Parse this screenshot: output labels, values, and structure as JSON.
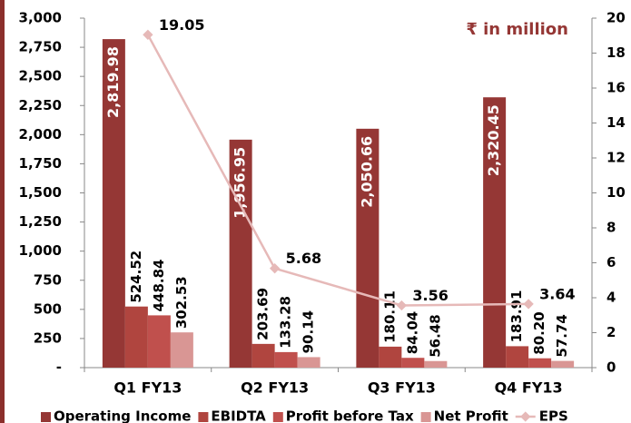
{
  "chart_data": {
    "type": "bar",
    "annotation": "₹ in million",
    "categories": [
      "Q1 FY13",
      "Q2 FY13",
      "Q3 FY13",
      "Q4 FY13"
    ],
    "series": [
      {
        "name": "Operating Income",
        "color": "#953735",
        "values": [
          2819.98,
          1956.95,
          2050.66,
          2320.45
        ],
        "value_labels": [
          "2,819.98",
          "1,956.95",
          "2,050.66",
          "2,320.45"
        ]
      },
      {
        "name": "EBIDTA",
        "color": "#b0453f",
        "values": [
          524.52,
          203.69,
          180.11,
          183.91
        ]
      },
      {
        "name": "Profit before Tax",
        "color": "#c0504d",
        "values": [
          448.84,
          133.28,
          84.04,
          80.2
        ],
        "value_labels": [
          "448.84",
          "133.28",
          "84.04",
          "80.20"
        ]
      },
      {
        "name": "Net Profit",
        "color": "#d99694",
        "values": [
          302.53,
          90.14,
          56.48,
          57.74
        ]
      },
      {
        "name": "EPS",
        "color": "#e6b9b8",
        "axis": "y2",
        "values": [
          19.05,
          5.68,
          3.56,
          3.64
        ]
      }
    ],
    "ylim": [
      0,
      3000
    ],
    "yticks": [
      {
        "value": 0,
        "label": "-"
      },
      250,
      500,
      750,
      {
        "value": 1000,
        "label": "1,000"
      },
      {
        "value": 1250,
        "label": "1,250"
      },
      {
        "value": 1500,
        "label": "1,500"
      },
      {
        "value": 1750,
        "label": "1,750"
      },
      {
        "value": 2000,
        "label": "2,000"
      },
      {
        "value": 2250,
        "label": "2,250"
      },
      {
        "value": 2500,
        "label": "2,500"
      },
      {
        "value": 2750,
        "label": "2,750"
      },
      {
        "value": 3000,
        "label": "3,000"
      }
    ],
    "y2lim": [
      0,
      20
    ],
    "y2ticks": [
      0,
      2,
      4,
      6,
      8,
      10,
      12,
      14,
      16,
      18,
      20
    ],
    "legend": "bottom"
  }
}
